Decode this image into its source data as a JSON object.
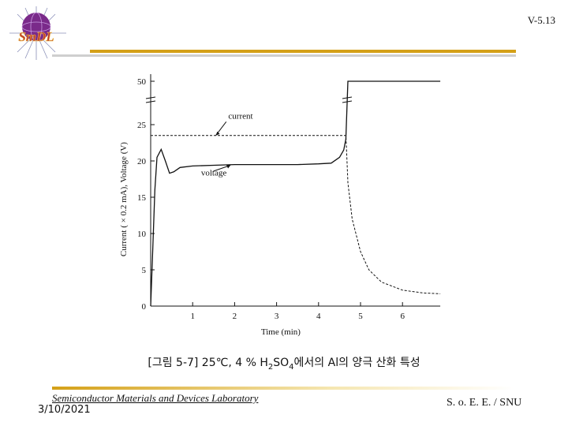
{
  "header": {
    "page_number": "V-5.13",
    "logo_text": "SmDL"
  },
  "caption": {
    "prefix": "[그림 5-7]  25℃, 4 % H",
    "sub1": "2",
    "mid": "SO",
    "sub2": "4",
    "suffix": "에서의 Al의 양극 산화 특성"
  },
  "footer": {
    "lab_name": "Semiconductor Materials and Devices Laboratory",
    "date": "3/10/2021",
    "school": "S. o. E. E. / SNU"
  },
  "colors": {
    "accent_gold": "#d4a017",
    "line": "#111111"
  },
  "chart_data": {
    "type": "line",
    "xlabel": "Time (min)",
    "ylabel": "Current ( × 0.2 mA), Voltage (V)",
    "x_ticks": [
      "1",
      "2",
      "3",
      "4",
      "5",
      "6"
    ],
    "y_ticks": [
      "0",
      "5",
      "10",
      "15",
      "20",
      "25",
      "50"
    ],
    "xlim": [
      0,
      6.9
    ],
    "y_axis_break": "between 25 and 50",
    "series": [
      {
        "name": "current",
        "style": "dashed",
        "x": [
          0,
          4.65,
          4.66,
          4.7,
          4.8,
          5.0,
          5.2,
          5.5,
          6.0,
          6.5,
          6.9
        ],
        "y": [
          23.5,
          23.5,
          22.5,
          17.0,
          12.0,
          7.5,
          5.0,
          3.3,
          2.2,
          1.8,
          1.7
        ]
      },
      {
        "name": "voltage",
        "style": "solid",
        "x": [
          0.0,
          0.05,
          0.1,
          0.15,
          0.25,
          0.35,
          0.45,
          0.55,
          0.7,
          1.0,
          1.5,
          2.0,
          2.5,
          3.0,
          3.5,
          4.0,
          4.3,
          4.5,
          4.6,
          4.65,
          4.7,
          5.0,
          5.5,
          6.0,
          6.5,
          6.9
        ],
        "y": [
          0,
          8,
          16,
          20.5,
          21.6,
          20,
          18.3,
          18.5,
          19.1,
          19.3,
          19.4,
          19.5,
          19.5,
          19.5,
          19.5,
          19.6,
          19.7,
          20.5,
          21.5,
          23,
          50,
          50,
          50,
          50,
          50,
          50
        ]
      }
    ],
    "annotations": [
      {
        "text": "current",
        "target_series": "current"
      },
      {
        "text": "voltage",
        "target_series": "voltage"
      }
    ]
  }
}
